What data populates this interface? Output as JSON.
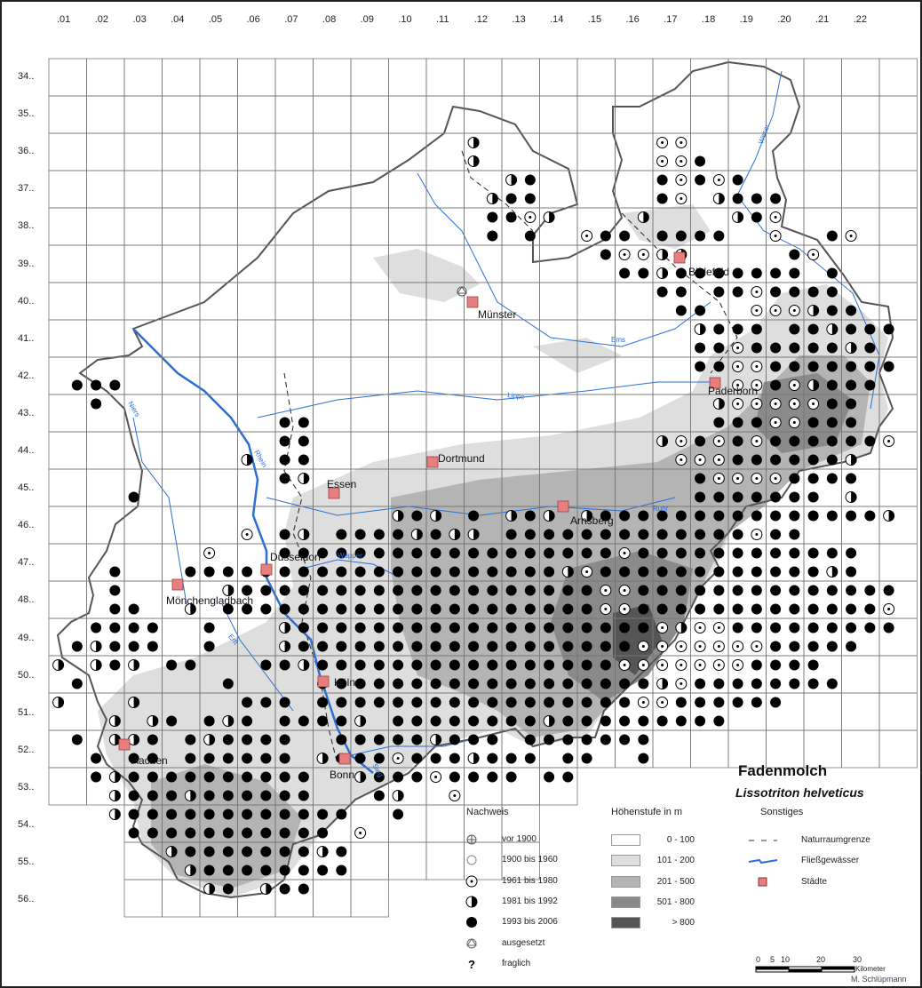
{
  "map": {
    "title": "Fadenmolch",
    "subtitle": "Lissotriton helveticus",
    "column_labels": [
      ".01",
      ".02",
      ".03",
      ".04",
      ".05",
      ".06",
      ".07",
      ".08",
      ".09",
      ".10",
      ".11",
      ".12",
      ".13",
      ".14",
      ".15",
      ".16",
      ".17",
      ".18",
      ".19",
      ".20",
      ".21",
      ".22"
    ],
    "row_labels": [
      "34..",
      "35..",
      "36..",
      "37..",
      "38..",
      "39..",
      "40..",
      "41..",
      "42..",
      "43..",
      "44..",
      "45..",
      "46..",
      "47..",
      "48..",
      "49..",
      "50..",
      "51..",
      "52..",
      "53..",
      "54..",
      "55..",
      "56.."
    ],
    "cities": [
      "Bielefeld",
      "Münster",
      "Paderborn",
      "Dortmund",
      "Essen",
      "Arnsberg",
      "Düsseldorf",
      "Mönchengladbach",
      "Köln",
      "Bonn",
      "Aachen"
    ],
    "rivers": [
      "Ems",
      "Lippe",
      "Ruhr",
      "Rhein",
      "Niers",
      "Erft",
      "Sieg",
      "Wupper",
      "Weser"
    ],
    "colors": {
      "river": "#2a6fd6",
      "city": "#e87f7f",
      "grid": "#666666",
      "elev_101_200": "#dedede",
      "elev_201_500": "#b4b4b4",
      "elev_501_800": "#8a8a8a",
      "elev_800": "#555555"
    },
    "symbol_codes": {
      "c": "1961 bis 1980",
      "h": "1981 bis 1992",
      "f": "1993 bis 2006"
    },
    "records_by_quadrant_row": [
      [
        4,
        22,
        "h"
      ],
      [
        4,
        32,
        "cc"
      ],
      [
        5,
        22,
        "h"
      ],
      [
        5,
        32,
        "ccf"
      ],
      [
        6,
        24,
        "hf"
      ],
      [
        6,
        32,
        "fcfcf"
      ],
      [
        7,
        23,
        "hff"
      ],
      [
        7,
        32,
        "fc.hfff"
      ],
      [
        8,
        23,
        "ffch"
      ],
      [
        8,
        31,
        "h....hfc"
      ],
      [
        9,
        23,
        "f.f"
      ],
      [
        9,
        28,
        "cff.ffff..c..fc"
      ],
      [
        10,
        29,
        "fcchh.....fc"
      ],
      [
        11,
        30,
        "ffhfffffff.f"
      ],
      [
        12,
        32,
        "ff.ffcffff"
      ],
      [
        13,
        33,
        "ff..ccchff"
      ],
      [
        14,
        34,
        "hfff.ffhfff"
      ],
      [
        15,
        34,
        "ffcfffffhf"
      ],
      [
        16,
        34,
        "ffccfffffff"
      ],
      [
        17,
        1,
        "fff"
      ],
      [
        17,
        36,
        "ccfchfff"
      ],
      [
        18,
        2,
        "f"
      ],
      [
        18,
        35,
        "hcccccff"
      ],
      [
        19,
        12,
        "ff"
      ],
      [
        19,
        35,
        "fffccfff"
      ],
      [
        20,
        12,
        "ff"
      ],
      [
        20,
        32,
        "hcfcfcffffffc"
      ],
      [
        21,
        10,
        "h.ff"
      ],
      [
        21,
        33,
        "cccffffffh"
      ],
      [
        22,
        12,
        "fh"
      ],
      [
        22,
        34,
        "fccccffff"
      ],
      [
        23,
        4,
        "f"
      ],
      [
        23,
        34,
        "fffffff.h"
      ],
      [
        24,
        18,
        "hfh.f.hfh.hfffffffffffffffh"
      ],
      [
        25,
        10,
        "c.fh.ffffhfhh.fffffffffffffcff"
      ],
      [
        26,
        8,
        "c...ffffffffffffffffffcffffffffffff"
      ],
      [
        27,
        3,
        "f...ffffffffffffffffffffhcffffffffffffhf"
      ],
      [
        28,
        3,
        "f.....hfffffffffffffffffffccffffffffffffff"
      ],
      [
        29,
        3,
        "ff..h.ffffffffffffffffffffccfffffffffffffc"
      ],
      [
        30,
        2,
        "ffff..f...hfffffffffffffffffffchccfffffffff"
      ],
      [
        31,
        1,
        "fhfff..f...hffffffffffffffffffcccccccfffff"
      ],
      [
        32,
        0,
        "h.hfh.ff...ffhffffffffffffffffcccccccffff"
      ],
      [
        33,
        1,
        "f.......f....ffffffffffffffffffhcffffffff"
      ],
      [
        34,
        0,
        "h...h.....fff.fffffffffffffffffccffffff"
      ],
      [
        35,
        3,
        "h.hf.fhf.ffffh.ffffffffhfffffffff"
      ],
      [
        36,
        1,
        "f.hhf.fhffff..fffffhfff.fffffff"
      ],
      [
        37,
        2,
        "f.ff.ffffff.hfffcfffhfff.ff..f"
      ],
      [
        38,
        2,
        "fhffffffffff..hfffcffff.ff"
      ],
      [
        39,
        3,
        "hfffhffffff...fh..c"
      ],
      [
        40,
        3,
        "hffffffffffff..f"
      ],
      [
        41,
        4,
        "fffffffffff.c"
      ],
      [
        42,
        6,
        "hfffffffhf"
      ],
      [
        43,
        7,
        "hffffffff"
      ],
      [
        44,
        8,
        "hf.hff"
      ]
    ],
    "introduced_record_near": "Münster"
  },
  "legend": {
    "nachweis": {
      "heading": "Nachweis",
      "items": [
        {
          "icon": "circle-cross-icon",
          "label": "vor 1900"
        },
        {
          "icon": "empty-circle-icon",
          "label": "1900 bis 1960"
        },
        {
          "icon": "circle-dot-icon",
          "label": "1961 bis 1980"
        },
        {
          "icon": "half-circle-icon",
          "label": "1981 bis 1992"
        },
        {
          "icon": "filled-circle-icon",
          "label": "1993 bis 2006"
        },
        {
          "icon": "triangle-circle-icon",
          "label": "ausgesetzt"
        },
        {
          "icon": "question-mark-icon",
          "label": "fraglich",
          "glyph": "?"
        }
      ]
    },
    "hoehen": {
      "heading": "Höhenstufe in m",
      "items": [
        {
          "label": "0 - 100",
          "color": "#ffffff"
        },
        {
          "label": "101 - 200",
          "color": "#dedede"
        },
        {
          "label": "201 - 500",
          "color": "#b4b4b4"
        },
        {
          "label": "501 - 800",
          "color": "#8a8a8a"
        },
        {
          "label": "> 800",
          "color": "#555555"
        }
      ]
    },
    "sonstiges": {
      "heading": "Sonstiges",
      "items": [
        {
          "icon": "dashed-line-icon",
          "label": "Naturraumgrenze"
        },
        {
          "icon": "river-line-icon",
          "label": "Fließgewässer"
        },
        {
          "icon": "city-square-icon",
          "label": "Städte"
        }
      ]
    }
  },
  "scalebar": {
    "ticks": [
      "0",
      "5",
      "10",
      "20",
      "30"
    ],
    "unit": "Kilometer"
  },
  "author": "M. Schlüpmann"
}
